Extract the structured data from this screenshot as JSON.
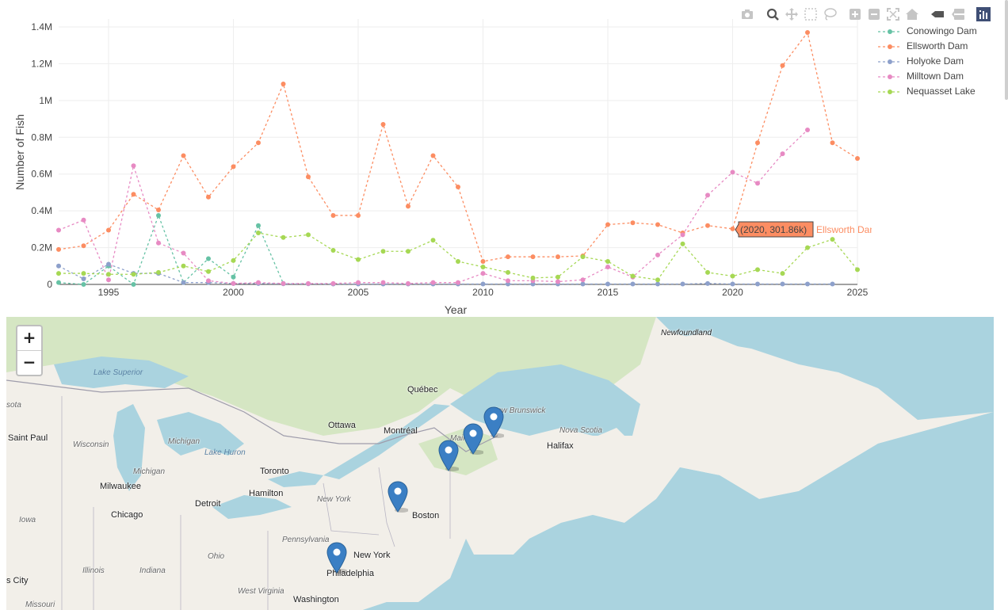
{
  "modebar": {
    "icons": [
      "camera-icon",
      "zoom-icon",
      "pan-icon",
      "box-select-icon",
      "lasso-icon",
      "zoom-in-icon",
      "zoom-out-icon",
      "autoscale-icon",
      "reset-axes-icon",
      "hover-closest-icon",
      "hover-compare-icon",
      "plotly-logo-icon"
    ]
  },
  "legend": {
    "items": [
      {
        "label": "Conowingo Dam",
        "color": "#66c2a5"
      },
      {
        "label": "Ellsworth Dam",
        "color": "#fc8d62"
      },
      {
        "label": "Holyoke Dam",
        "color": "#8da0cb"
      },
      {
        "label": "Milltown Dam",
        "color": "#e78ac3"
      },
      {
        "label": "Nequasset Lake",
        "color": "#a6d854"
      }
    ]
  },
  "chart_data": {
    "type": "line",
    "xlabel": "Year",
    "ylabel": "Number of Fish",
    "xlim": [
      1993,
      2025
    ],
    "ylim": [
      0,
      1400000
    ],
    "xticks": [
      1995,
      2000,
      2005,
      2010,
      2015,
      2020,
      2025
    ],
    "yticks": [
      0,
      200000,
      400000,
      600000,
      800000,
      1000000,
      1200000,
      1400000
    ],
    "ytick_labels": [
      "0",
      "0.2M",
      "0.4M",
      "0.6M",
      "0.8M",
      "1M",
      "1.2M",
      "1.4M"
    ],
    "grid": true,
    "legend_position": "right",
    "series": [
      {
        "name": "Conowingo Dam",
        "x": [
          1993,
          1994,
          1995,
          1996,
          1997,
          1998,
          1999,
          2000,
          2001,
          2002
        ],
        "y": [
          10000,
          0,
          100000,
          0,
          375000,
          10000,
          140000,
          40000,
          320000,
          5000
        ]
      },
      {
        "name": "Ellsworth Dam",
        "x": [
          1993,
          1994,
          1995,
          1996,
          1997,
          1998,
          1999,
          2000,
          2001,
          2002,
          2003,
          2004,
          2005,
          2006,
          2007,
          2008,
          2009,
          2010,
          2011,
          2012,
          2013,
          2014,
          2015,
          2016,
          2017,
          2018,
          2019,
          2020,
          2021,
          2022,
          2023,
          2024,
          2025
        ],
        "y": [
          190000,
          210000,
          295000,
          490000,
          405000,
          700000,
          475000,
          640000,
          770000,
          1090000,
          585000,
          375000,
          375000,
          870000,
          425000,
          700000,
          530000,
          125000,
          150000,
          150000,
          150000,
          155000,
          325000,
          335000,
          325000,
          280000,
          320000,
          301860,
          770000,
          1190000,
          1370000,
          770000,
          685000
        ]
      },
      {
        "name": "Holyoke Dam",
        "x": [
          1993,
          1994,
          1995,
          1996,
          1997,
          1998,
          1999,
          2000,
          2001,
          2002,
          2003,
          2004,
          2005,
          2006,
          2007,
          2008,
          2009,
          2010,
          2011,
          2012,
          2013,
          2014,
          2015,
          2016,
          2017,
          2018,
          2019,
          2020,
          2021,
          2022,
          2023,
          2024
        ],
        "y": [
          100000,
          30000,
          110000,
          60000,
          60000,
          10000,
          10000,
          5000,
          5000,
          3000,
          3000,
          2000,
          2000,
          2000,
          2000,
          2000,
          2000,
          2000,
          2000,
          2000,
          2000,
          2000,
          2000,
          2000,
          2000,
          2000,
          5000,
          2000,
          2000,
          2000,
          2000,
          2000
        ]
      },
      {
        "name": "Milltown Dam",
        "x": [
          1993,
          1994,
          1995,
          1996,
          1997,
          1998,
          1999,
          2000,
          2001,
          2002,
          2003,
          2004,
          2005,
          2006,
          2007,
          2008,
          2009,
          2010,
          2011,
          2012,
          2013,
          2014,
          2015,
          2016,
          2017,
          2018,
          2019,
          2020,
          2021,
          2022,
          2023
        ],
        "y": [
          295000,
          350000,
          25000,
          645000,
          225000,
          170000,
          20000,
          5000,
          10000,
          5000,
          5000,
          5000,
          10000,
          10000,
          5000,
          10000,
          10000,
          60000,
          20000,
          20000,
          15000,
          25000,
          95000,
          40000,
          160000,
          270000,
          485000,
          610000,
          550000,
          710000,
          840000
        ]
      },
      {
        "name": "Nequasset Lake",
        "x": [
          1993,
          1994,
          1995,
          1996,
          1997,
          1998,
          1999,
          2000,
          2001,
          2002,
          2003,
          2004,
          2005,
          2006,
          2007,
          2008,
          2009,
          2010,
          2011,
          2012,
          2013,
          2014,
          2015,
          2016,
          2017,
          2018,
          2019,
          2020,
          2021,
          2022,
          2023,
          2024,
          2025
        ],
        "y": [
          60000,
          60000,
          55000,
          55000,
          65000,
          100000,
          70000,
          130000,
          280000,
          255000,
          270000,
          185000,
          135000,
          180000,
          180000,
          240000,
          125000,
          95000,
          65000,
          35000,
          40000,
          150000,
          125000,
          45000,
          25000,
          220000,
          65000,
          45000,
          80000,
          60000,
          200000,
          245000,
          80000
        ]
      }
    ]
  },
  "tooltip": {
    "text": "(2020, 301.86k)",
    "series_label": "Ellsworth Dam",
    "color": "#fc8d62"
  },
  "map": {
    "zoom_in": "+",
    "zoom_out": "−",
    "cities": [
      {
        "name": "Québec",
        "dot": false
      },
      {
        "name": "Ottawa",
        "dot": true
      },
      {
        "name": "Montréal",
        "dot": true
      },
      {
        "name": "Toronto",
        "dot": false
      },
      {
        "name": "Hamilton",
        "dot": false
      },
      {
        "name": "Detroit",
        "dot": false
      },
      {
        "name": "Milwaukee",
        "dot": false
      },
      {
        "name": "Chicago",
        "dot": false
      },
      {
        "name": "Saint Paul",
        "dot": false
      },
      {
        "name": "Boston",
        "dot": false
      },
      {
        "name": "New York",
        "dot": false
      },
      {
        "name": "Philadelphia",
        "dot": false
      },
      {
        "name": "Washington",
        "dot": false
      },
      {
        "name": "Halifax",
        "dot": false
      },
      {
        "name": "s City",
        "dot": false
      }
    ],
    "regions": [
      "New Brunswick",
      "Nova Scotia",
      "Newfoundland",
      "Wisconsin",
      "Michigan",
      "Michigan",
      "Iowa",
      "Illinois",
      "Indiana",
      "Ohio",
      "Pennsylvania",
      "West Virginia",
      "New York",
      "Missouri",
      "sota",
      "Maine"
    ],
    "water": [
      "Lake Superior",
      "Lake Huron"
    ],
    "marker_count": 5
  }
}
